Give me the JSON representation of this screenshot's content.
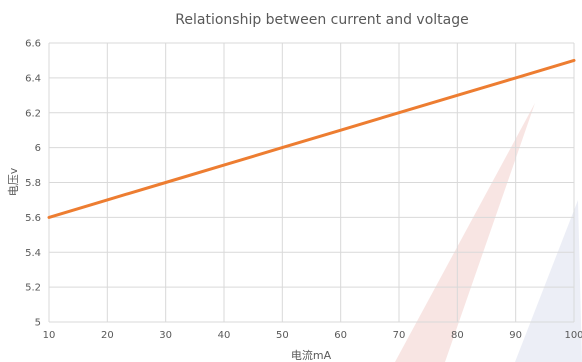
{
  "chart_data": {
    "type": "line",
    "title": "Relationship between current and voltage",
    "xlabel": "电流mA",
    "ylabel": "电压v",
    "x_ticks": [
      "10",
      "20",
      "30",
      "40",
      "50",
      "60",
      "70",
      "80",
      "90",
      "100"
    ],
    "y_ticks": [
      "5",
      "5.2",
      "5.4",
      "5.6",
      "5.8",
      "6",
      "6.2",
      "6.4",
      "6.6"
    ],
    "xlim": [
      10,
      100
    ],
    "ylim": [
      5,
      6.6
    ],
    "grid": true,
    "series": [
      {
        "x": [
          10,
          20,
          30,
          40,
          50,
          60,
          70,
          80,
          90,
          100
        ],
        "y": [
          5.6,
          5.7,
          5.8,
          5.9,
          6.0,
          6.1,
          6.2,
          6.3,
          6.4,
          6.5
        ],
        "color": "#ED7D31"
      }
    ],
    "colors": {
      "grid": "#d9d9d9",
      "text": "#595959",
      "watermark": "#f2d7d5"
    }
  }
}
